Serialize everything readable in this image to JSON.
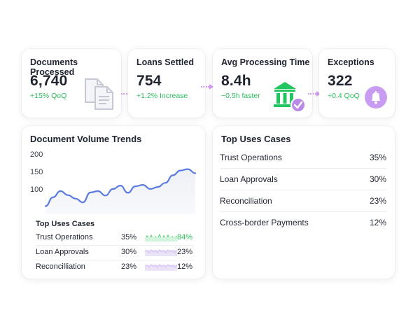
{
  "kpis": [
    {
      "title": "Documents Processed",
      "value": "6,740",
      "delta": "+15% QoQ",
      "icon": "documents-icon"
    },
    {
      "title": "Loans Settled",
      "value": "754",
      "delta": "+1.2% Increase",
      "icon": ""
    },
    {
      "title": "Avg Processing Time",
      "value": "8.4h",
      "delta": "−0.5h faster",
      "icon": "bank-check-icon"
    },
    {
      "title": "Exceptions",
      "value": "322",
      "delta": "+0.4 QoQ",
      "icon": "bell-icon"
    }
  ],
  "colors": {
    "accent_green": "#2bbf5a",
    "accent_purple": "#c89cf0",
    "line_blue": "#5b7be0"
  },
  "trends": {
    "title": "Document Volume Trends",
    "y_ticks": [
      "200",
      "150",
      "100"
    ]
  },
  "chart_data": {
    "type": "line",
    "title": "Document Volume Trends",
    "y_ticks": [
      200,
      150,
      100
    ],
    "ylim": [
      40,
      210
    ],
    "x": [
      0,
      1,
      2,
      3,
      4,
      5,
      6,
      7,
      8,
      9,
      10,
      11,
      12,
      13,
      14,
      15,
      16,
      17,
      18,
      19,
      20
    ],
    "values": [
      52,
      78,
      96,
      84,
      74,
      63,
      92,
      96,
      83,
      102,
      112,
      91,
      110,
      114,
      102,
      108,
      120,
      142,
      156,
      160,
      148
    ]
  },
  "mini_table": {
    "title": "Top Uses Cases",
    "rows": [
      {
        "name": "Trust Operations",
        "pct": "35%",
        "pct2": "84%"
      },
      {
        "name": "Loan Approvals",
        "pct": "30%",
        "pct2": "23%"
      },
      {
        "name": "Reconcilliation",
        "pct": "23%",
        "pct2": "12%"
      }
    ]
  },
  "top_uses": {
    "title": "Top Uses Cases",
    "rows": [
      {
        "name": "Trust Operations",
        "pct": "35%"
      },
      {
        "name": "Loan Approvals",
        "pct": "30%"
      },
      {
        "name": "Reconciliation",
        "pct": "23%"
      },
      {
        "name": "Cross-border Payments",
        "pct": "12%"
      }
    ]
  }
}
